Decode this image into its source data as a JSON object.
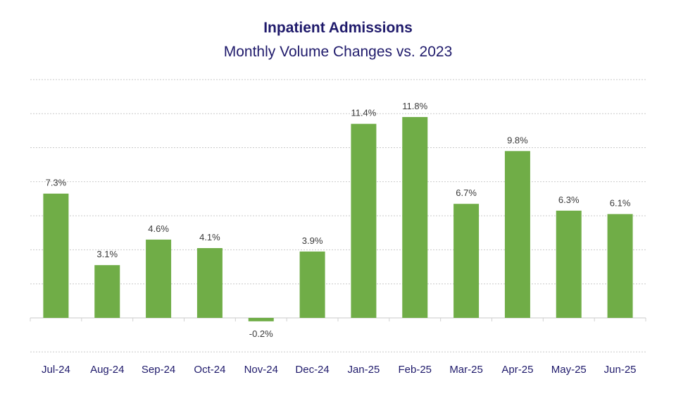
{
  "chart_data": {
    "type": "bar",
    "title": "Inpatient Admissions",
    "subtitle": "Monthly Volume Changes vs. 2023",
    "categories": [
      "Jul-24",
      "Aug-24",
      "Sep-24",
      "Oct-24",
      "Nov-24",
      "Dec-24",
      "Jan-25",
      "Feb-25",
      "Mar-25",
      "Apr-25",
      "May-25",
      "Jun-25"
    ],
    "values": [
      7.3,
      3.1,
      4.6,
      4.1,
      -0.2,
      3.9,
      11.4,
      11.8,
      6.7,
      9.8,
      6.3,
      6.1
    ],
    "data_labels": [
      "7.3%",
      "3.1%",
      "4.6%",
      "4.1%",
      "-0.2%",
      "3.9%",
      "11.4%",
      "11.8%",
      "6.7%",
      "9.8%",
      "6.3%",
      "6.1%"
    ],
    "xlabel": "",
    "ylabel": "",
    "ylim": [
      -2,
      14
    ],
    "y_gridlines": [
      -2,
      0,
      2,
      4,
      6,
      8,
      10,
      12,
      14
    ],
    "grid": true,
    "legend": "none",
    "bar_color": "#70ad47"
  }
}
